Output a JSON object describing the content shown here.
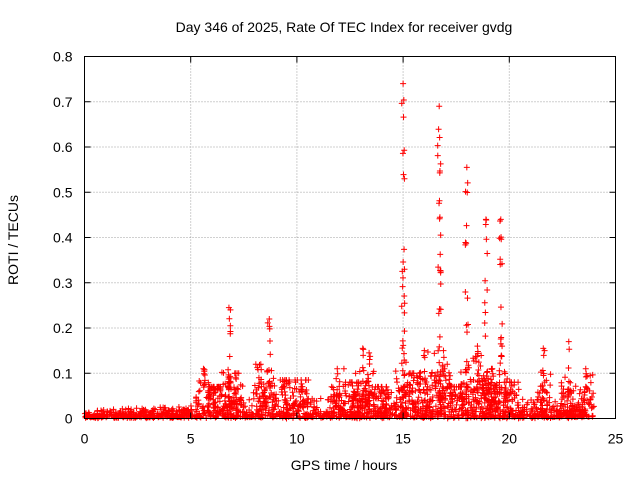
{
  "chart_data": {
    "type": "scatter",
    "title": "Day 346 of 2025, Rate Of TEC Index for receiver gvdg",
    "xlabel": "GPS time / hours",
    "ylabel": "ROTI / TECUs",
    "xlim": [
      0,
      25
    ],
    "ylim": [
      0,
      0.8
    ],
    "xticks": [
      0,
      5,
      10,
      15,
      20,
      25
    ],
    "yticks": [
      0,
      0.1,
      0.2,
      0.3,
      0.4,
      0.5,
      0.6,
      0.7,
      0.8
    ],
    "grid": true,
    "marker": "+",
    "color": "#ff0000",
    "baseline": [
      [
        0.0,
        0.015
      ],
      [
        1.0,
        0.02
      ],
      [
        2.0,
        0.02
      ],
      [
        3.0,
        0.025
      ],
      [
        4.0,
        0.025
      ],
      [
        5.0,
        0.03
      ],
      [
        5.5,
        0.04
      ],
      [
        6.0,
        0.05
      ],
      [
        7.0,
        0.05
      ],
      [
        8.0,
        0.05
      ],
      [
        9.0,
        0.05
      ],
      [
        10.0,
        0.04
      ],
      [
        11.0,
        0.04
      ],
      [
        12.0,
        0.045
      ],
      [
        13.0,
        0.05
      ],
      [
        14.0,
        0.05
      ],
      [
        15.0,
        0.06
      ],
      [
        16.0,
        0.06
      ],
      [
        17.0,
        0.06
      ],
      [
        18.0,
        0.06
      ],
      [
        19.0,
        0.06
      ],
      [
        20.0,
        0.05
      ],
      [
        21.0,
        0.04
      ],
      [
        22.0,
        0.04
      ],
      [
        23.0,
        0.035
      ],
      [
        24.0,
        0.03
      ]
    ],
    "peaks": [
      {
        "x": 5.6,
        "y": 0.11
      },
      {
        "x": 6.1,
        "y": 0.07
      },
      {
        "x": 6.8,
        "y": 0.245
      },
      {
        "x": 7.1,
        "y": 0.1
      },
      {
        "x": 8.3,
        "y": 0.12
      },
      {
        "x": 8.7,
        "y": 0.22
      },
      {
        "x": 9.5,
        "y": 0.085
      },
      {
        "x": 10.2,
        "y": 0.085
      },
      {
        "x": 11.9,
        "y": 0.11
      },
      {
        "x": 12.6,
        "y": 0.08
      },
      {
        "x": 13.1,
        "y": 0.155
      },
      {
        "x": 13.4,
        "y": 0.145
      },
      {
        "x": 14.0,
        "y": 0.07
      },
      {
        "x": 15.0,
        "y": 0.74
      },
      {
        "x": 15.5,
        "y": 0.1
      },
      {
        "x": 16.0,
        "y": 0.15
      },
      {
        "x": 16.7,
        "y": 0.69
      },
      {
        "x": 16.9,
        "y": 0.15
      },
      {
        "x": 17.4,
        "y": 0.07
      },
      {
        "x": 18.0,
        "y": 0.555
      },
      {
        "x": 18.5,
        "y": 0.16
      },
      {
        "x": 18.9,
        "y": 0.44
      },
      {
        "x": 19.2,
        "y": 0.11
      },
      {
        "x": 19.6,
        "y": 0.44
      },
      {
        "x": 20.1,
        "y": 0.08
      },
      {
        "x": 21.6,
        "y": 0.155
      },
      {
        "x": 22.8,
        "y": 0.17
      },
      {
        "x": 23.6,
        "y": 0.11
      }
    ]
  }
}
